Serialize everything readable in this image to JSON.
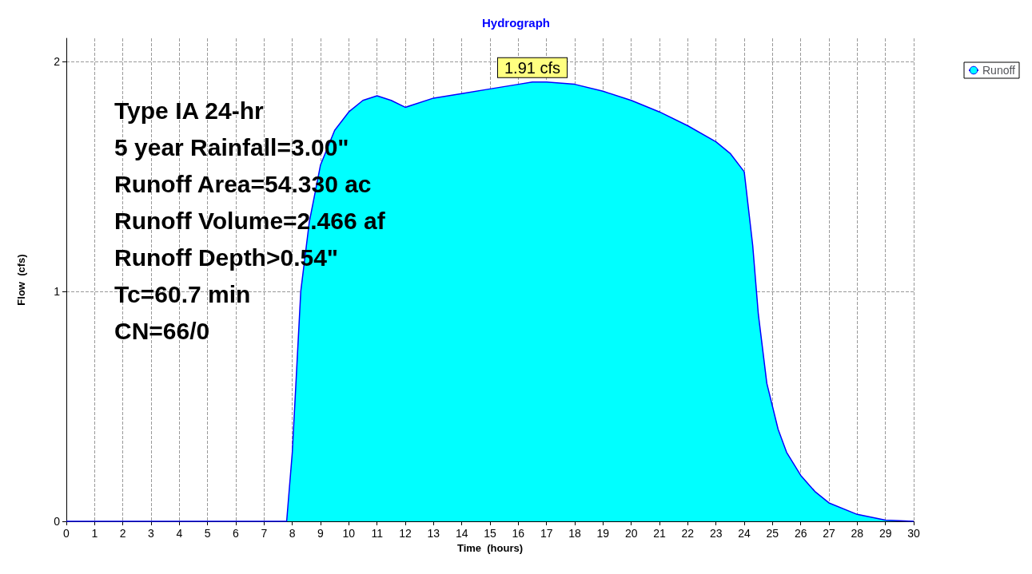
{
  "chart_data": {
    "type": "area",
    "title": "Hydrograph",
    "xlabel": "Time  (hours)",
    "ylabel": "Flow  (cfs)",
    "x": [
      0,
      1,
      2,
      3,
      4,
      5,
      6,
      7,
      7.8,
      8,
      8.3,
      8.6,
      9,
      9.5,
      10,
      10.5,
      11,
      11.5,
      12,
      13,
      14,
      15,
      16,
      16.5,
      17,
      18,
      19,
      20,
      21,
      22,
      23,
      23.5,
      24,
      24.3,
      24.5,
      24.8,
      25.2,
      25.5,
      26,
      26.5,
      27,
      28,
      29,
      30
    ],
    "series": [
      {
        "name": "Runoff",
        "color": "#00ffff",
        "values": [
          0,
          0,
          0,
          0,
          0,
          0,
          0,
          0,
          0,
          0.3,
          1.0,
          1.3,
          1.55,
          1.7,
          1.78,
          1.83,
          1.85,
          1.83,
          1.8,
          1.84,
          1.86,
          1.88,
          1.9,
          1.91,
          1.91,
          1.9,
          1.87,
          1.83,
          1.78,
          1.72,
          1.65,
          1.6,
          1.52,
          1.2,
          0.9,
          0.6,
          0.4,
          0.3,
          0.2,
          0.13,
          0.08,
          0.03,
          0.005,
          0
        ]
      }
    ],
    "xlim": [
      0,
      30
    ],
    "xticks": [
      0,
      1,
      2,
      3,
      4,
      5,
      6,
      7,
      8,
      9,
      10,
      11,
      12,
      13,
      14,
      15,
      16,
      17,
      18,
      19,
      20,
      21,
      22,
      23,
      24,
      25,
      26,
      27,
      28,
      29,
      30
    ],
    "ylim": [
      0,
      2.1
    ],
    "yticks": [
      0,
      1,
      2
    ],
    "grid": true,
    "legend": "top right",
    "annotations": [
      {
        "text": "1.91 cfs",
        "x": 16.5,
        "y": 1.91
      },
      "Type IA 24-hr",
      "5 year Rainfall=3.00\"",
      "Runoff Area=54.330 ac",
      "Runoff Volume=2.466 af",
      "Runoff Depth>0.54\"",
      "Tc=60.7 min",
      "CN=66/0"
    ]
  }
}
